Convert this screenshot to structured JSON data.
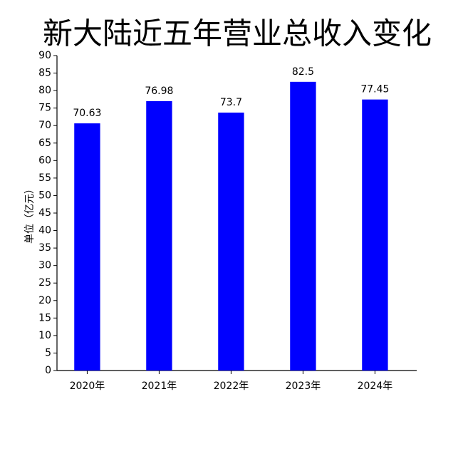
{
  "chart_data": {
    "type": "bar",
    "title": "新大陆近五年营业总收入变化",
    "y_label": "单位（亿元）",
    "categories": [
      "2020年",
      "2021年",
      "2022年",
      "2023年",
      "2024年"
    ],
    "values": [
      70.63,
      76.98,
      73.7,
      82.5,
      77.45
    ],
    "color": "#0000ff",
    "ylim": [
      0,
      90
    ],
    "yticks": [
      0,
      5,
      10,
      15,
      20,
      25,
      30,
      35,
      40,
      45,
      50,
      55,
      60,
      65,
      70,
      75,
      80,
      85,
      90
    ]
  }
}
